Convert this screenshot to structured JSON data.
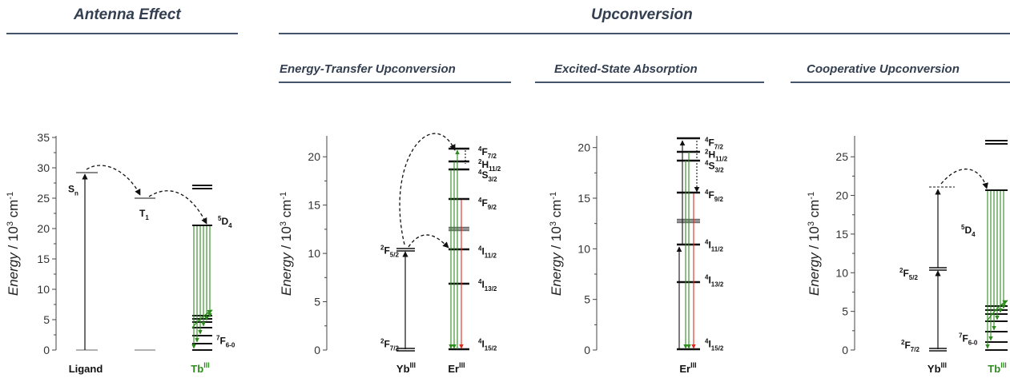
{
  "headers": {
    "antenna": "Antenna Effect",
    "upconversion": "Upconversion",
    "etu": "Energy-Transfer Upconversion",
    "esa": "Excited-State Absorption",
    "cu": "Cooperative Upconversion"
  },
  "axis": {
    "ylabel_prefix": "Energy",
    "ylabel_suffix": " / 10",
    "ylabel_exp": "3",
    "ylabel_unit": " cm",
    "ylabel_unit_exp": "-1"
  },
  "panels": [
    {
      "id": "antenna",
      "ymax": 35,
      "ticks": [
        0,
        5,
        10,
        15,
        20,
        25,
        30,
        35
      ],
      "species": [
        {
          "name": "Ligand",
          "sup": "",
          "color": "#111111"
        },
        {
          "name": "Tb",
          "sup": "III",
          "color": "#2e8b1e"
        }
      ],
      "labels": [
        {
          "main": "S",
          "sub": "n",
          "sup": "",
          "energy": 26.5
        },
        {
          "main": "T",
          "sub": "1",
          "sup": "",
          "energy": 22.5
        },
        {
          "main": "D",
          "sub": "4",
          "sup": "5",
          "energy": 21.2
        },
        {
          "main": "F",
          "sub": "6-0",
          "sup": "7",
          "energy": 1.5
        }
      ]
    },
    {
      "id": "etu",
      "ymax": 22,
      "ticks": [
        0,
        5,
        10,
        15,
        20
      ],
      "species": [
        {
          "name": "Yb",
          "sup": "III",
          "color": "#111111"
        },
        {
          "name": "Er",
          "sup": "III",
          "color": "#111111"
        }
      ],
      "labels": [
        {
          "main": "F",
          "sub": "5/2",
          "sup": "2",
          "energy": 10.3
        },
        {
          "main": "F",
          "sub": "7/2",
          "sup": "2",
          "energy": 0.6
        },
        {
          "main": "F",
          "sub": "7/2",
          "sup": "4",
          "energy": 20.5
        },
        {
          "main": "H",
          "sub": "11/2",
          "sup": "2",
          "energy": 19.2
        },
        {
          "main": "S",
          "sub": "3/2",
          "sup": "4",
          "energy": 18.1
        },
        {
          "main": "F",
          "sub": "9/2",
          "sup": "4",
          "energy": 15.2
        },
        {
          "main": "I",
          "sub": "11/2",
          "sup": "4",
          "energy": 10.2
        },
        {
          "main": "I",
          "sub": "13/2",
          "sup": "4",
          "energy": 6.8
        },
        {
          "main": "I",
          "sub": "15/2",
          "sup": "4",
          "energy": 0.6
        }
      ]
    },
    {
      "id": "esa",
      "ymax": 21,
      "ticks": [
        0,
        5,
        10,
        15,
        20
      ],
      "species": [
        {
          "name": "Er",
          "sup": "III",
          "color": "#111111"
        }
      ],
      "labels": [
        {
          "main": "F",
          "sub": "7/2",
          "sup": "4",
          "energy": 20.5
        },
        {
          "main": "H",
          "sub": "11/2",
          "sup": "2",
          "energy": 19.3
        },
        {
          "main": "S",
          "sub": "3/2",
          "sup": "4",
          "energy": 18.2
        },
        {
          "main": "F",
          "sub": "9/2",
          "sup": "4",
          "energy": 15.3
        },
        {
          "main": "I",
          "sub": "11/2",
          "sup": "4",
          "energy": 10.4
        },
        {
          "main": "I",
          "sub": "13/2",
          "sup": "4",
          "energy": 6.9
        },
        {
          "main": "I",
          "sub": "15/2",
          "sup": "4",
          "energy": 0.6
        }
      ]
    },
    {
      "id": "cu",
      "ymax": 27.5,
      "ticks": [
        0,
        5,
        10,
        15,
        20,
        25
      ],
      "species": [
        {
          "name": "Yb",
          "sup": "III",
          "color": "#111111"
        },
        {
          "name": "Tb",
          "sup": "III",
          "color": "#2e8b1e"
        }
      ],
      "labels": [
        {
          "main": "D",
          "sub": "4",
          "sup": "5",
          "energy": 15.5
        },
        {
          "main": "F",
          "sub": "5/2",
          "sup": "2",
          "energy": 9.9
        },
        {
          "main": "F",
          "sub": "7/2",
          "sup": "2",
          "energy": 0.6
        },
        {
          "main": "F",
          "sub": "6-0",
          "sup": "7",
          "energy": 1.5
        }
      ]
    }
  ]
}
